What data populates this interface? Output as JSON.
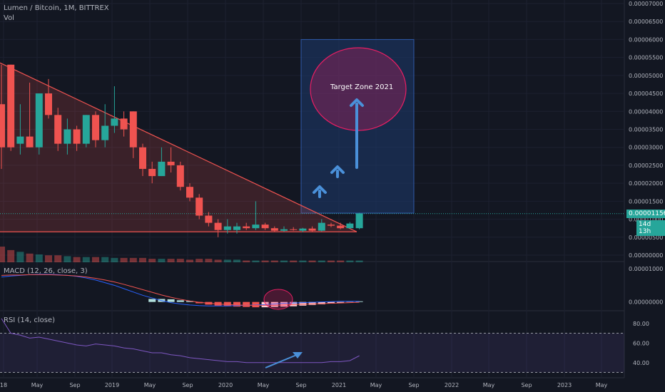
{
  "header": {
    "symbol": "Lumen / Bitcoin, 1M, BITTREX",
    "volume_label": "Vol"
  },
  "indicators": {
    "macd_label": "MACD (12, 26, close, 3)",
    "rsi_label": "RSI (14, close)"
  },
  "annotation": {
    "target_label": "Target Zone 2021"
  },
  "current": {
    "price": "0.00001156",
    "countdown": "14d 13h"
  },
  "colors": {
    "up": "#26a69a",
    "down": "#ef5350",
    "macd": "#2962ff",
    "signal": "#ef5350",
    "rsi": "#7e57c2",
    "zone": "#1e3a6e",
    "ellipse": "#e91e63"
  },
  "chart_data": [
    {
      "type": "candlestick",
      "title": "Lumen / Bitcoin, 1M, BITTREX",
      "y_ticks": [
        "0.00007000",
        "0.00006500",
        "0.00006000",
        "0.00005500",
        "0.00005000",
        "0.00004500",
        "0.00004000",
        "0.00003500",
        "0.00003000",
        "0.00002500",
        "0.00002000",
        "0.00001500",
        "0.00001000",
        "0.00000500",
        "0.00000000"
      ],
      "y_range": [
        0,
        7e-05
      ],
      "x_ticks": [
        "18",
        "May",
        "Sep",
        "2019",
        "May",
        "Sep",
        "2020",
        "May",
        "Sep",
        "2021",
        "May",
        "Sep",
        "2022",
        "May",
        "Sep",
        "2023",
        "May"
      ],
      "candles": [
        {
          "o": 4.2e-05,
          "h": 5.3e-05,
          "l": 2.4e-05,
          "c": 3e-05
        },
        {
          "o": 5.3e-05,
          "h": 5.3e-05,
          "l": 2.9e-05,
          "c": 3e-05
        },
        {
          "o": 3.1e-05,
          "h": 4.2e-05,
          "l": 2.8e-05,
          "c": 3.3e-05
        },
        {
          "o": 3.3e-05,
          "h": 4.8e-05,
          "l": 3e-05,
          "c": 3e-05
        },
        {
          "o": 3e-05,
          "h": 4.5e-05,
          "l": 2.8e-05,
          "c": 4.5e-05
        },
        {
          "o": 4.5e-05,
          "h": 4.9e-05,
          "l": 3.8e-05,
          "c": 3.9e-05
        },
        {
          "o": 3.9e-05,
          "h": 4.1e-05,
          "l": 2.9e-05,
          "c": 3.1e-05
        },
        {
          "o": 3.1e-05,
          "h": 3.8e-05,
          "l": 2.8e-05,
          "c": 3.5e-05
        },
        {
          "o": 3.5e-05,
          "h": 3.6e-05,
          "l": 2.9e-05,
          "c": 3.1e-05
        },
        {
          "o": 3.1e-05,
          "h": 3.9e-05,
          "l": 3e-05,
          "c": 3.9e-05
        },
        {
          "o": 3.9e-05,
          "h": 4e-05,
          "l": 3e-05,
          "c": 3.2e-05
        },
        {
          "o": 3.2e-05,
          "h": 4.2e-05,
          "l": 3e-05,
          "c": 3.6e-05
        },
        {
          "o": 3.6e-05,
          "h": 4.7e-05,
          "l": 3.4e-05,
          "c": 3.8e-05
        },
        {
          "o": 3.8e-05,
          "h": 4e-05,
          "l": 3.3e-05,
          "c": 3.5e-05
        },
        {
          "o": 4e-05,
          "h": 4e-05,
          "l": 2.7e-05,
          "c": 3e-05
        },
        {
          "o": 3e-05,
          "h": 3.1e-05,
          "l": 2.2e-05,
          "c": 2.4e-05
        },
        {
          "o": 2.4e-05,
          "h": 2.6e-05,
          "l": 2e-05,
          "c": 2.2e-05
        },
        {
          "o": 2.2e-05,
          "h": 3e-05,
          "l": 2.2e-05,
          "c": 2.6e-05
        },
        {
          "o": 2.6e-05,
          "h": 3e-05,
          "l": 2.3e-05,
          "c": 2.5e-05
        },
        {
          "o": 2.5e-05,
          "h": 2.6e-05,
          "l": 1.8e-05,
          "c": 1.9e-05
        },
        {
          "o": 1.9e-05,
          "h": 2e-05,
          "l": 1.5e-05,
          "c": 1.6e-05
        },
        {
          "o": 1.6e-05,
          "h": 1.7e-05,
          "l": 1e-05,
          "c": 1.1e-05
        },
        {
          "o": 1.1e-05,
          "h": 1.2e-05,
          "l": 8e-06,
          "c": 9e-06
        },
        {
          "o": 9e-06,
          "h": 1e-05,
          "l": 5e-06,
          "c": 7e-06
        },
        {
          "o": 7e-06,
          "h": 1e-05,
          "l": 6e-06,
          "c": 8e-06
        },
        {
          "o": 7e-06,
          "h": 9e-06,
          "l": 6e-06,
          "c": 8e-06
        },
        {
          "o": 8e-06,
          "h": 9e-06,
          "l": 7e-06,
          "c": 7.5e-06
        },
        {
          "o": 7.5e-06,
          "h": 1.5e-05,
          "l": 7e-06,
          "c": 8.5e-06
        },
        {
          "o": 8.5e-06,
          "h": 9e-06,
          "l": 7e-06,
          "c": 7.5e-06
        },
        {
          "o": 7.5e-06,
          "h": 8e-06,
          "l": 6.5e-06,
          "c": 6.8e-06
        },
        {
          "o": 6.8e-06,
          "h": 8e-06,
          "l": 6.5e-06,
          "c": 7.2e-06
        },
        {
          "o": 7.2e-06,
          "h": 7.8e-06,
          "l": 6.8e-06,
          "c": 7e-06
        },
        {
          "o": 6.8e-06,
          "h": 7.6e-06,
          "l": 6.4e-06,
          "c": 7.4e-06
        },
        {
          "o": 7.4e-06,
          "h": 8e-06,
          "l": 6.6e-06,
          "c": 6.8e-06
        },
        {
          "o": 6.8e-06,
          "h": 1e-05,
          "l": 6.6e-06,
          "c": 9e-06
        },
        {
          "o": 8.5e-06,
          "h": 9e-06,
          "l": 7.8e-06,
          "c": 8.2e-06
        },
        {
          "o": 8.2e-06,
          "h": 9e-06,
          "l": 7.2e-06,
          "c": 7.5e-06
        },
        {
          "o": 7.5e-06,
          "h": 9.2e-06,
          "l": 7.4e-06,
          "c": 8.8e-06
        },
        {
          "o": 7.5e-06,
          "h": 1.18e-05,
          "l": 7.2e-06,
          "c": 1.16e-05
        }
      ],
      "volume": [
        18,
        14,
        12,
        10,
        9,
        8,
        8,
        7,
        6,
        6,
        6,
        6,
        5,
        5,
        5,
        5,
        4,
        4,
        4,
        4,
        3,
        4,
        4,
        3,
        3,
        3,
        2,
        2,
        2,
        2,
        2,
        2,
        2,
        2,
        2,
        2,
        2,
        2,
        2
      ]
    },
    {
      "type": "macd",
      "title": "MACD (12, 26, close, 3)",
      "y_ticks": [
        "0.00001000",
        "0.00000000"
      ],
      "y_range": [
        -2e-06,
        1.15e-05
      ],
      "histogram": [
        0,
        0,
        0,
        0,
        0,
        0,
        0,
        0,
        0,
        0,
        0,
        0,
        0,
        0,
        0,
        0,
        9e-07,
        9e-07,
        8e-07,
        5e-07,
        3e-07,
        -4e-07,
        -8e-07,
        -1.1e-06,
        -1.3e-06,
        -1.4e-06,
        -1.5e-06,
        -1.6e-06,
        -1.6e-06,
        -1.5e-06,
        -1.4e-06,
        -1.3e-06,
        -1.1e-06,
        -9e-07,
        -7e-07,
        -5e-07,
        -3e-07,
        -1e-07,
        2e-07
      ],
      "macd": [
        7.5e-06,
        7.8e-06,
        8e-06,
        8.2e-06,
        8.3e-06,
        8.3e-06,
        8.2e-06,
        8e-06,
        7.7e-06,
        7.2e-06,
        6.6e-06,
        5.8e-06,
        5e-06,
        4e-06,
        3e-06,
        2e-06,
        1.2e-06,
        4e-07,
        -2e-07,
        -6e-07,
        -9e-07,
        -1.1e-06,
        -1.2e-06,
        -1.2e-06,
        -1.2e-06,
        -1.1e-06,
        -1e-06,
        -9e-07,
        -8e-07,
        -6e-07,
        -4e-07,
        -3e-07,
        -2e-07,
        -1e-07,
        0.0,
        1e-07,
        2e-07,
        2e-07,
        2e-07
      ],
      "signal": [
        8e-06,
        8.1e-06,
        8.1e-06,
        8.2e-06,
        8.2e-06,
        8.2e-06,
        8.1e-06,
        8e-06,
        7.8e-06,
        7.5e-06,
        7.1e-06,
        6.6e-06,
        6e-06,
        5.3e-06,
        4.5e-06,
        3.7e-06,
        2.9e-06,
        2.1e-06,
        1.4e-06,
        8e-07,
        3e-07,
        -1e-07,
        -4e-07,
        -6e-07,
        -8e-07,
        -9e-07,
        -1e-06,
        -1e-06,
        -1e-06,
        -1e-06,
        -9e-07,
        -8e-07,
        -7e-07,
        -6e-07,
        -5e-07,
        -4e-07,
        -3e-07,
        -2e-07,
        -1e-07
      ]
    },
    {
      "type": "line",
      "title": "RSI (14, close)",
      "y_ticks": [
        "80.00",
        "60.00",
        "40.00"
      ],
      "y_range": [
        26,
        90
      ],
      "bands": [
        70,
        30
      ],
      "values": [
        85,
        70,
        68,
        65,
        66,
        64,
        62,
        60,
        58,
        57,
        59,
        58,
        57,
        55,
        54,
        52,
        50,
        50,
        48,
        47,
        45,
        44,
        43,
        42,
        41,
        41,
        40,
        40,
        40,
        40,
        40,
        40,
        40,
        40,
        40,
        41,
        41,
        42,
        47
      ]
    }
  ]
}
